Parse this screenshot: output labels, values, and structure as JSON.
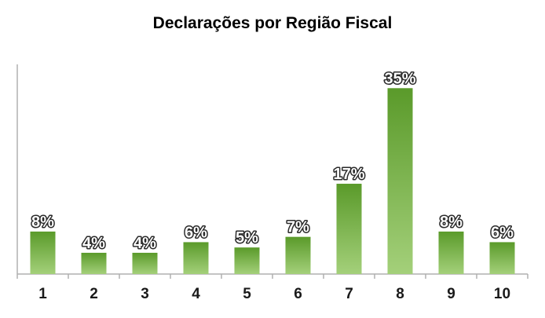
{
  "chart_data": {
    "type": "bar",
    "title": "Declarações por Região Fiscal",
    "xlabel": "",
    "ylabel": "",
    "categories": [
      "1",
      "2",
      "3",
      "4",
      "5",
      "6",
      "7",
      "8",
      "9",
      "10"
    ],
    "values": [
      8,
      4,
      4,
      6,
      5,
      7,
      17,
      35,
      8,
      6
    ],
    "value_labels": [
      "8%",
      "4%",
      "4%",
      "6%",
      "5%",
      "7%",
      "17%",
      "35%",
      "8%",
      "6%"
    ],
    "unit": "%",
    "ylim": [
      0,
      38
    ],
    "grid": false,
    "legend": "none",
    "colors": {
      "bar_top": "#5a9a2a",
      "bar_bottom": "#a4d07a",
      "axis": "#b0b0b0"
    }
  }
}
